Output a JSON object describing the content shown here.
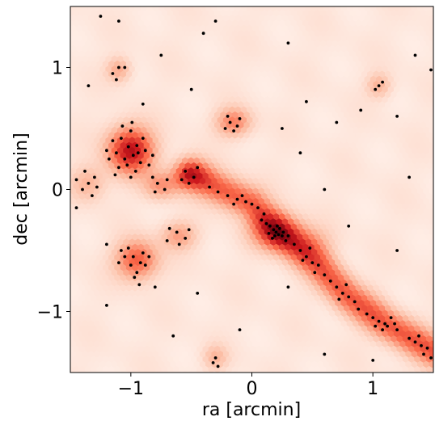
{
  "chart_data": {
    "type": "scatter",
    "title": "",
    "xlabel": "ra [arcmin]",
    "ylabel": "dec [arcmin]",
    "xlim": [
      -1.5,
      1.5
    ],
    "ylim": [
      -1.5,
      1.5
    ],
    "x_ticks": [
      -1,
      0,
      1
    ],
    "x_tick_labels": [
      "−1",
      "0",
      "1"
    ],
    "y_ticks": [
      -1,
      0,
      1
    ],
    "y_tick_labels": [
      "−1",
      "0",
      "1"
    ],
    "grid": false,
    "background": {
      "kind": "hexbin density",
      "colormap": [
        "#fff5f0",
        "#fcbba1",
        "#fb6a4a",
        "#cb181d",
        "#67000d"
      ],
      "clusters": [
        {
          "x": -1.0,
          "y": 0.32,
          "sx": 0.13,
          "sy": 0.13,
          "amp": 0.75
        },
        {
          "x": -0.95,
          "y": -0.58,
          "sx": 0.12,
          "sy": 0.11,
          "amp": 0.5
        },
        {
          "x": -0.6,
          "y": -0.38,
          "sx": 0.1,
          "sy": 0.08,
          "amp": 0.28
        },
        {
          "x": -0.75,
          "y": 0.03,
          "sx": 0.1,
          "sy": 0.08,
          "amp": 0.3
        },
        {
          "x": -0.5,
          "y": 0.12,
          "sx": 0.1,
          "sy": 0.08,
          "amp": 0.28
        },
        {
          "x": -0.15,
          "y": 0.55,
          "sx": 0.1,
          "sy": 0.08,
          "amp": 0.38
        },
        {
          "x": -1.1,
          "y": 0.98,
          "sx": 0.07,
          "sy": 0.07,
          "amp": 0.25
        },
        {
          "x": 1.05,
          "y": 0.85,
          "sx": 0.07,
          "sy": 0.07,
          "amp": 0.22
        },
        {
          "x": -1.35,
          "y": 0.05,
          "sx": 0.1,
          "sy": 0.1,
          "amp": 0.22
        },
        {
          "x": 0.5,
          "y": -0.45,
          "sx": 0.12,
          "sy": 0.1,
          "amp": 0.2
        },
        {
          "x": -0.3,
          "y": -1.38,
          "sx": 0.07,
          "sy": 0.07,
          "amp": 0.2
        }
      ],
      "filament": [
        [
          -0.5,
          0.12
        ],
        [
          0.0,
          -0.12
        ],
        [
          0.25,
          -0.37
        ],
        [
          0.55,
          -0.62
        ],
        [
          0.8,
          -0.88
        ],
        [
          1.1,
          -1.1
        ],
        [
          1.5,
          -1.33
        ]
      ],
      "filament_peak": {
        "x": 0.2,
        "y": -0.35
      }
    },
    "series": [
      {
        "marker": "dot",
        "color": "#000000",
        "points": [
          [
            -1.08,
            0.42
          ],
          [
            -1.02,
            0.35
          ],
          [
            -0.98,
            0.28
          ],
          [
            -1.05,
            0.25
          ],
          [
            -0.95,
            0.36
          ],
          [
            -1.12,
            0.3
          ],
          [
            -0.92,
            0.22
          ],
          [
            -1.0,
            0.48
          ],
          [
            -1.1,
            0.18
          ],
          [
            -0.88,
            0.32
          ],
          [
            -1.15,
            0.4
          ],
          [
            -0.9,
            0.42
          ],
          [
            -1.03,
            0.2
          ],
          [
            -0.96,
            0.15
          ],
          [
            -1.18,
            0.25
          ],
          [
            -0.85,
            0.2
          ],
          [
            -1.07,
            0.52
          ],
          [
            -0.94,
            0.3
          ],
          [
            -1.2,
            0.32
          ],
          [
            -0.82,
            0.28
          ],
          [
            -1.0,
            0.1
          ],
          [
            -1.13,
            0.12
          ],
          [
            -0.99,
            0.55
          ],
          [
            -0.98,
            -0.55
          ],
          [
            -0.92,
            -0.6
          ],
          [
            -1.0,
            -0.62
          ],
          [
            -0.9,
            -0.52
          ],
          [
            -1.05,
            -0.55
          ],
          [
            -0.95,
            -0.68
          ],
          [
            -0.88,
            -0.62
          ],
          [
            -1.02,
            -0.48
          ],
          [
            -0.97,
            -0.72
          ],
          [
            -1.1,
            -0.6
          ],
          [
            -0.85,
            -0.55
          ],
          [
            -1.08,
            -0.5
          ],
          [
            -0.93,
            -0.78
          ],
          [
            -1.2,
            -0.45
          ],
          [
            -0.62,
            -0.35
          ],
          [
            -0.55,
            -0.4
          ],
          [
            -0.68,
            -0.32
          ],
          [
            -0.6,
            -0.45
          ],
          [
            -0.52,
            -0.33
          ],
          [
            -0.7,
            -0.42
          ],
          [
            -0.78,
            0.05
          ],
          [
            -0.72,
            0.0
          ],
          [
            -0.8,
            -0.02
          ],
          [
            -0.7,
            0.08
          ],
          [
            -0.82,
            0.1
          ],
          [
            -0.55,
            0.15
          ],
          [
            -0.48,
            0.1
          ],
          [
            -0.52,
            0.05
          ],
          [
            -0.45,
            0.18
          ],
          [
            -0.58,
            0.08
          ],
          [
            -0.18,
            0.55
          ],
          [
            -0.12,
            0.52
          ],
          [
            -0.2,
            0.6
          ],
          [
            -0.1,
            0.58
          ],
          [
            -0.22,
            0.5
          ],
          [
            -0.15,
            0.48
          ],
          [
            -1.1,
            1.0
          ],
          [
            -1.15,
            0.95
          ],
          [
            -1.05,
            1.0
          ],
          [
            -1.12,
            0.9
          ],
          [
            1.05,
            0.85
          ],
          [
            1.02,
            0.82
          ],
          [
            1.08,
            0.88
          ],
          [
            -1.35,
            0.05
          ],
          [
            -1.4,
            0.0
          ],
          [
            -1.3,
            0.1
          ],
          [
            -1.38,
            0.15
          ],
          [
            -1.32,
            -0.05
          ],
          [
            -1.45,
            0.08
          ],
          [
            -1.28,
            0.02
          ],
          [
            -0.3,
            -1.38
          ],
          [
            -0.32,
            -1.42
          ],
          [
            -0.28,
            -1.45
          ],
          [
            -0.35,
            0.02
          ],
          [
            -0.28,
            -0.02
          ],
          [
            -0.2,
            -0.05
          ],
          [
            -0.12,
            -0.08
          ],
          [
            -0.05,
            -0.1
          ],
          [
            0.0,
            -0.12
          ],
          [
            0.05,
            -0.15
          ],
          [
            -0.08,
            -0.05
          ],
          [
            -0.15,
            -0.12
          ],
          [
            0.1,
            -0.2
          ],
          [
            0.12,
            -0.28
          ],
          [
            0.15,
            -0.3
          ],
          [
            0.18,
            -0.33
          ],
          [
            0.2,
            -0.35
          ],
          [
            0.22,
            -0.37
          ],
          [
            0.25,
            -0.38
          ],
          [
            0.17,
            -0.4
          ],
          [
            0.23,
            -0.32
          ],
          [
            0.28,
            -0.42
          ],
          [
            0.14,
            -0.36
          ],
          [
            0.21,
            -0.3
          ],
          [
            0.26,
            -0.35
          ],
          [
            0.19,
            -0.38
          ],
          [
            0.3,
            -0.38
          ],
          [
            0.08,
            -0.25
          ],
          [
            0.35,
            -0.45
          ],
          [
            0.4,
            -0.5
          ],
          [
            0.45,
            -0.55
          ],
          [
            0.5,
            -0.6
          ],
          [
            0.55,
            -0.62
          ],
          [
            0.42,
            -0.58
          ],
          [
            0.52,
            -0.68
          ],
          [
            0.6,
            -0.7
          ],
          [
            0.48,
            -0.48
          ],
          [
            0.65,
            -0.75
          ],
          [
            0.7,
            -0.8
          ],
          [
            0.75,
            -0.85
          ],
          [
            0.8,
            -0.88
          ],
          [
            0.85,
            -0.92
          ],
          [
            0.72,
            -0.9
          ],
          [
            0.78,
            -0.78
          ],
          [
            0.88,
            -0.98
          ],
          [
            0.95,
            -1.02
          ],
          [
            1.0,
            -1.05
          ],
          [
            1.05,
            -1.08
          ],
          [
            1.1,
            -1.1
          ],
          [
            1.12,
            -1.12
          ],
          [
            1.15,
            -1.05
          ],
          [
            1.08,
            -1.15
          ],
          [
            1.18,
            -1.1
          ],
          [
            1.02,
            -1.12
          ],
          [
            1.2,
            -1.15
          ],
          [
            1.3,
            -1.22
          ],
          [
            1.35,
            -1.25
          ],
          [
            1.4,
            -1.28
          ],
          [
            1.45,
            -1.3
          ],
          [
            1.42,
            -1.35
          ],
          [
            1.38,
            -1.2
          ],
          [
            1.48,
            -1.38
          ],
          [
            -1.25,
            1.42
          ],
          [
            -1.1,
            1.38
          ],
          [
            -0.4,
            1.28
          ],
          [
            -0.75,
            1.1
          ],
          [
            0.3,
            1.2
          ],
          [
            1.35,
            1.1
          ],
          [
            1.48,
            0.98
          ],
          [
            -1.35,
            0.85
          ],
          [
            -0.9,
            0.7
          ],
          [
            -0.5,
            0.82
          ],
          [
            0.9,
            0.65
          ],
          [
            0.7,
            0.55
          ],
          [
            1.2,
            0.6
          ],
          [
            0.45,
            0.72
          ],
          [
            1.3,
            0.1
          ],
          [
            0.6,
            0.0
          ],
          [
            -0.45,
            -0.85
          ],
          [
            0.8,
            -0.3
          ],
          [
            1.2,
            -0.5
          ],
          [
            -1.2,
            -0.95
          ],
          [
            -0.1,
            -1.15
          ],
          [
            0.6,
            -1.35
          ],
          [
            1.0,
            -1.4
          ],
          [
            -0.65,
            -1.2
          ],
          [
            -1.45,
            -0.15
          ],
          [
            -0.8,
            -0.8
          ],
          [
            0.3,
            -0.8
          ],
          [
            0.4,
            0.3
          ],
          [
            0.25,
            0.5
          ],
          [
            -0.3,
            1.38
          ]
        ]
      }
    ]
  }
}
